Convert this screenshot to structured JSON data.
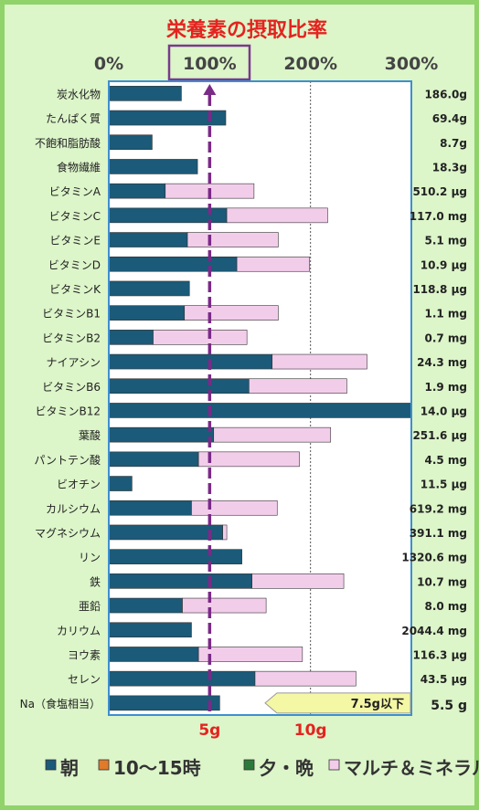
{
  "chart_data": {
    "type": "bar",
    "title": "栄養素の摂取比率",
    "x_ticks": [
      "0%",
      "100%",
      "200%",
      "300%"
    ],
    "xlim": [
      0,
      300
    ],
    "categories": [
      "炭水化物",
      "たんぱく質",
      "不飽和脂肪酸",
      "食物繊維",
      "ビタミンA",
      "ビタミンC",
      "ビタミンE",
      "ビタミンD",
      "ビタミンK",
      "ビタミンB1",
      "ビタミンB2",
      "ナイアシン",
      "ビタミンB6",
      "ビタミンB12",
      "葉酸",
      "パントテン酸",
      "ビオチン",
      "カルシウム",
      "マグネシウム",
      "リン",
      "鉄",
      "亜鉛",
      "カリウム",
      "ヨウ素",
      "セレン",
      "Na（食塩相当）"
    ],
    "amounts": [
      "186.0g",
      "69.4g",
      "8.7g",
      "18.3g",
      "510.2 μg",
      "117.0 mg",
      "5.1 mg",
      "10.9 μg",
      "118.8 μg",
      "1.1 mg",
      "0.7 mg",
      "24.3 mg",
      "1.9 mg",
      "14.0 μg",
      "251.6 μg",
      "4.5 mg",
      "11.5 μg",
      "619.2 mg",
      "391.1 mg",
      "1320.6 mg",
      "10.7 mg",
      "8.0 mg",
      "2044.4 mg",
      "116.3 μg",
      "43.5 μg",
      "5.5 g"
    ],
    "series": [
      {
        "name": "朝",
        "color": "#1b5a78",
        "values": [
          72,
          116,
          43,
          88,
          56,
          117,
          78,
          127,
          80,
          75,
          44,
          162,
          139,
          300,
          104,
          89,
          23,
          82,
          113,
          132,
          142,
          73,
          82,
          89,
          145,
          110
        ]
      },
      {
        "name": "10～15時",
        "color": "#e07b2a",
        "values": [
          0,
          0,
          0,
          0,
          0,
          0,
          0,
          0,
          0,
          0,
          0,
          0,
          0,
          0,
          0,
          0,
          0,
          0,
          0,
          0,
          0,
          0,
          0,
          0,
          0,
          0
        ]
      },
      {
        "name": "夕・晩",
        "color": "#2c7a3a",
        "values": [
          0,
          0,
          0,
          0,
          0,
          0,
          0,
          0,
          0,
          0,
          0,
          0,
          0,
          0,
          0,
          0,
          0,
          0,
          0,
          0,
          0,
          0,
          0,
          0,
          0,
          0
        ]
      },
      {
        "name": "マルチ＆ミネラル",
        "color": "#f2cdea",
        "values": [
          0,
          0,
          0,
          0,
          88,
          100,
          90,
          72,
          0,
          93,
          93,
          94,
          97,
          0,
          116,
          100,
          0,
          85,
          4,
          0,
          91,
          83,
          0,
          103,
          100,
          0
        ]
      }
    ],
    "reference_line": {
      "value": 100
    },
    "grid_lines": [
      200
    ],
    "sodium_axis": {
      "ticks": [
        "5g",
        "10g"
      ],
      "tick_values": [
        100,
        200
      ]
    },
    "sodium_target": "7.5g以下",
    "grid": true,
    "legend_position": "bottom"
  }
}
